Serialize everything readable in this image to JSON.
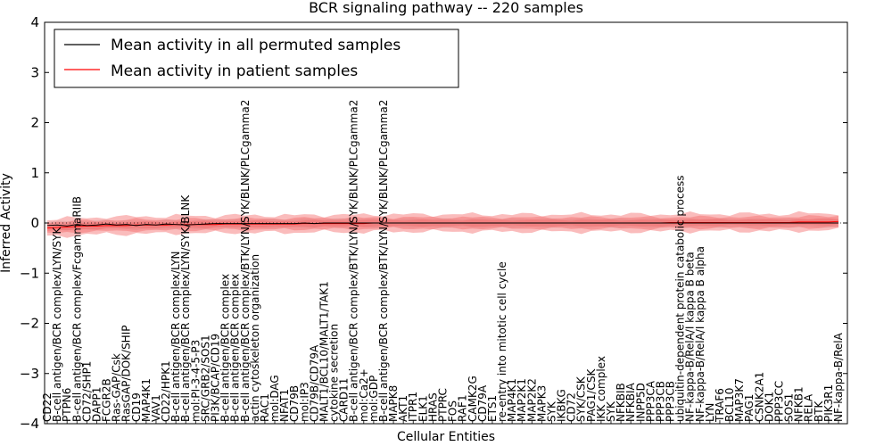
{
  "chart_data": {
    "type": "line",
    "title": "BCR signaling pathway -- 220 samples",
    "xlabel": "Cellular Entities",
    "ylabel": "Inferred Activity",
    "ylim": [
      -4,
      4
    ],
    "yticks": [
      "−4",
      "−3",
      "−2",
      "−1",
      "0",
      "1",
      "2",
      "3",
      "4"
    ],
    "yticks_values": [
      -4,
      -3,
      -2,
      -1,
      0,
      1,
      2,
      3,
      4
    ],
    "legend_position": "top-left",
    "series": [
      {
        "name": "Mean activity in all permuted samples",
        "color": "#000000",
        "band_color": "#cccccc",
        "band_halfwidth": 0.08
      },
      {
        "name": "Mean activity in patient samples",
        "color": "#ff0000",
        "band_color": "#f56a6a",
        "band_halfwidth": 0.17
      }
    ],
    "categories": [
      "CD22",
      "B-cell antigen/BCR complex/LYN/SYK",
      "PTPN6",
      "B-cell antigen/BCR complex/FcgammaRIIB",
      "CD72/SHP1",
      "DAPP1",
      "FCGR2B",
      "Ras-GAP/Csk",
      "RasGAP/DOK/SHIP",
      "CD19",
      "MAP4K1",
      "VAV1",
      "CD22/HPK1",
      "B-cell antigen/BCR complex/LYN",
      "B-cell antigen/BCR complex/LYN/SYK/BLNK",
      "mol:PI-3-4-5-P3",
      "SRC/GRB2/SOS1",
      "PI3K/BCAP/CD19",
      "B-cell antigen/BCR complex",
      "B-cell antigen/BCR complex",
      "B-cell antigen/BCR complex/BTK/LYN/SYK/BLNK/PLCgamma2",
      "actin cytoskeleton organization",
      "RAC1",
      "mol:DAG",
      "NFAT1",
      "CD79B",
      "mol:IP3",
      "CD79B/CD79A",
      "MALT1/BCL10/MALT1/TAK1",
      "cytokine secretion",
      "CARD11",
      "B-cell antigen/BCR complex/BTK/LYN/SYK/BLNK/PLCgamma2",
      "mol:Ca2+",
      "mol:GDP",
      "B-cell antigen/BCR complex/BTK/LYN/SYK/BLNK/PLCgamma2",
      "MAPK8",
      "AKT1",
      "ITPR1",
      "ELK1",
      "HRAS",
      "PTPRC",
      "FOS",
      "RAF1",
      "CAMK2G",
      "CD79A",
      "ETS1",
      "re-entry into mitotic cell cycle",
      "MAP4K1",
      "MAP2K1",
      "MAP2K2",
      "MAPK3",
      "SYK",
      "IKBKG",
      "CD72",
      "SYK/CSK",
      "PAG1/CSK",
      "IKK complex",
      "SYK",
      "NFKBIB",
      "NFKBIA",
      "INPP5D",
      "PPP3CA",
      "PPP3CB",
      "PPP3CB",
      "ubiquitin-dependent protein catabolic process",
      "NF-kappa-B/RelA/I kappa B beta",
      "NF-kappa-B/RelA/I kappa B alpha",
      "LYN",
      "TRAF6",
      "BCL10",
      "MAP3K7",
      "PAG1",
      "CSNK2A1",
      "DOK1",
      "PPP3CC",
      "SOS1",
      "NFKB1",
      "RELA",
      "BTK",
      "PIK3R1",
      "NF-kappa-B/RelA"
    ],
    "patient_means": [
      -0.1,
      -0.09,
      -0.08,
      -0.07,
      -0.06,
      -0.06,
      -0.05,
      -0.05,
      -0.05,
      -0.04,
      -0.04,
      -0.04,
      -0.04,
      -0.03,
      -0.03,
      -0.03,
      -0.03,
      -0.03,
      -0.02,
      -0.02,
      -0.02,
      -0.02,
      -0.02,
      -0.02,
      -0.02,
      -0.02,
      -0.01,
      -0.01,
      -0.01,
      -0.01,
      -0.01,
      -0.01,
      -0.01,
      0.0,
      0.0,
      0.0,
      0.0,
      0.0,
      0.0,
      0.0,
      0.0,
      0.0,
      0.0,
      0.0,
      0.0,
      0.0,
      0.0,
      0.0,
      0.0,
      0.0,
      0.0,
      0.0,
      0.0,
      0.0,
      0.0,
      0.0,
      0.0,
      0.0,
      0.0,
      0.0,
      0.0,
      0.0,
      0.0,
      0.01,
      0.01,
      0.01,
      0.01,
      0.01,
      0.01,
      0.01,
      0.01,
      0.01,
      0.01,
      0.01,
      0.01,
      0.01,
      0.02,
      0.02,
      0.02,
      0.02,
      0.03
    ],
    "permuted_means": [
      -0.05,
      -0.04,
      -0.06,
      -0.03,
      -0.05,
      -0.04,
      -0.02,
      -0.04,
      -0.03,
      -0.05,
      -0.03,
      -0.04,
      -0.02,
      -0.03,
      -0.04,
      -0.03,
      -0.02,
      -0.01,
      -0.01,
      -0.01,
      -0.01,
      -0.01,
      -0.01,
      -0.01,
      -0.01,
      -0.01,
      0.0,
      -0.01,
      0.0,
      0.0,
      0.0,
      0.0,
      0.0,
      0.0,
      0.0,
      0.0,
      0.0,
      0.0,
      0.0,
      0.0,
      0.0,
      0.0,
      0.0,
      0.0,
      0.0,
      0.0,
      0.0,
      0.0,
      0.0,
      0.0,
      0.0,
      0.0,
      0.0,
      0.0,
      0.0,
      0.0,
      0.0,
      0.0,
      0.0,
      0.0,
      0.0,
      0.0,
      0.0,
      0.0,
      0.0,
      0.0,
      0.0,
      0.0,
      0.0,
      0.0,
      0.0,
      0.0,
      0.0,
      0.0,
      0.0,
      0.0,
      0.0,
      0.0,
      0.0,
      0.0,
      0.0
    ]
  }
}
